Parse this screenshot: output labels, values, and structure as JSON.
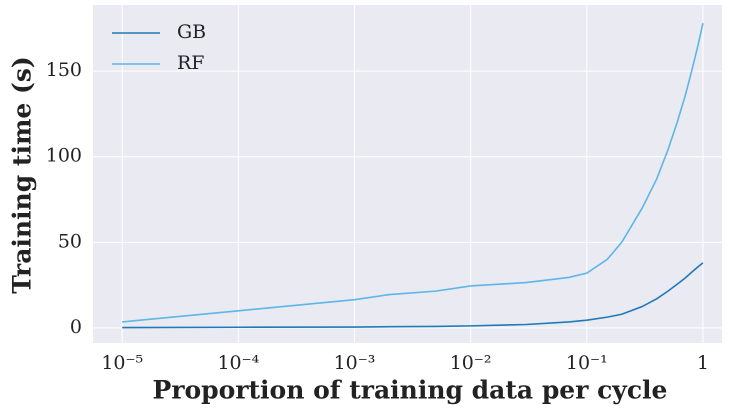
{
  "chart_data": {
    "type": "line",
    "xlabel": "Proportion of training data per cycle",
    "ylabel": "Training time (s)",
    "xscale": "log",
    "x": [
      1e-05,
      0.0001,
      0.001,
      0.002,
      0.005,
      0.01,
      0.03,
      0.07,
      0.1,
      0.15,
      0.2,
      0.3,
      0.4,
      0.5,
      0.6,
      0.7,
      0.8,
      0.9,
      1
    ],
    "series": [
      {
        "name": "GB",
        "color": "#1f7ab8",
        "values": [
          0.2,
          0.4,
          0.5,
          0.7,
          0.9,
          1.2,
          2,
          3.5,
          4.5,
          6.3,
          8,
          12.5,
          17,
          21.5,
          25.5,
          29,
          32.5,
          35.5,
          38
        ]
      },
      {
        "name": "RF",
        "color": "#5cb6e6",
        "values": [
          3.5,
          10,
          16.5,
          19.5,
          21.5,
          24.5,
          26.5,
          29.5,
          32,
          40,
          50,
          70,
          87,
          104,
          120,
          135,
          150,
          164,
          178
        ]
      }
    ],
    "xlim": [
      5.6e-06,
      1.46
    ],
    "xticks": [
      {
        "value": 1e-05,
        "label": "10⁻⁵"
      },
      {
        "value": 0.0001,
        "label": "10⁻⁴"
      },
      {
        "value": 0.001,
        "label": "10⁻³"
      },
      {
        "value": 0.01,
        "label": "10⁻²"
      },
      {
        "value": 0.1,
        "label": "10⁻¹"
      },
      1
    ],
    "ylim": [
      -8.8,
      188.6
    ],
    "yticks": [
      0,
      50,
      100,
      150
    ],
    "grid": true,
    "legend": "upper left"
  }
}
